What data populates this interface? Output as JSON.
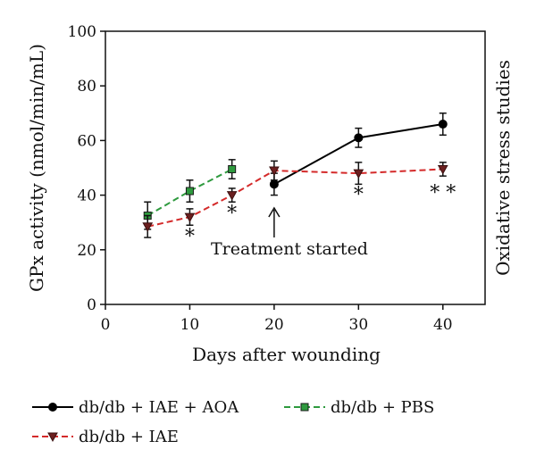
{
  "chart_data": {
    "type": "line",
    "xlabel": "Days after wounding",
    "ylabel": "GPx activity (nmol/min/mL)",
    "right_label": "Oxidative stress studies",
    "xlim": [
      0,
      45
    ],
    "ylim": [
      0,
      100
    ],
    "x_ticks": [
      0,
      10,
      20,
      30,
      40
    ],
    "y_ticks": [
      0,
      20,
      40,
      60,
      80,
      100
    ],
    "grid": false,
    "legend_position": "bottom",
    "series": [
      {
        "name": "db/db + IAE + AOA",
        "color": "#000000",
        "line_style": "solid",
        "marker": "circle",
        "x": [
          20,
          30,
          40
        ],
        "y": [
          44,
          61,
          66
        ],
        "err": [
          4,
          3.5,
          4
        ]
      },
      {
        "name": "db/db + PBS",
        "color": "#2e9a3e",
        "line_style": "dashed",
        "marker": "square",
        "x": [
          5,
          10,
          15
        ],
        "y": [
          32.5,
          41.5,
          49.5
        ],
        "err": [
          5,
          4,
          3.5
        ]
      },
      {
        "name": "db/db + IAE",
        "color": "#d42a2a",
        "line_style": "dashed",
        "marker": "triangle-down",
        "x": [
          5,
          10,
          15,
          20,
          30,
          40
        ],
        "y": [
          28.5,
          32,
          40,
          49,
          48,
          49.5
        ],
        "err": [
          4,
          3,
          2.5,
          3.5,
          4,
          2.5
        ]
      }
    ],
    "annotations": {
      "treatment": {
        "text": "Treatment started",
        "x": 20
      },
      "significance": [
        {
          "x": 10,
          "text": "*"
        },
        {
          "x": 15,
          "text": "*"
        },
        {
          "x": 30,
          "text": "*"
        },
        {
          "x": 40,
          "text": "**"
        }
      ]
    }
  }
}
